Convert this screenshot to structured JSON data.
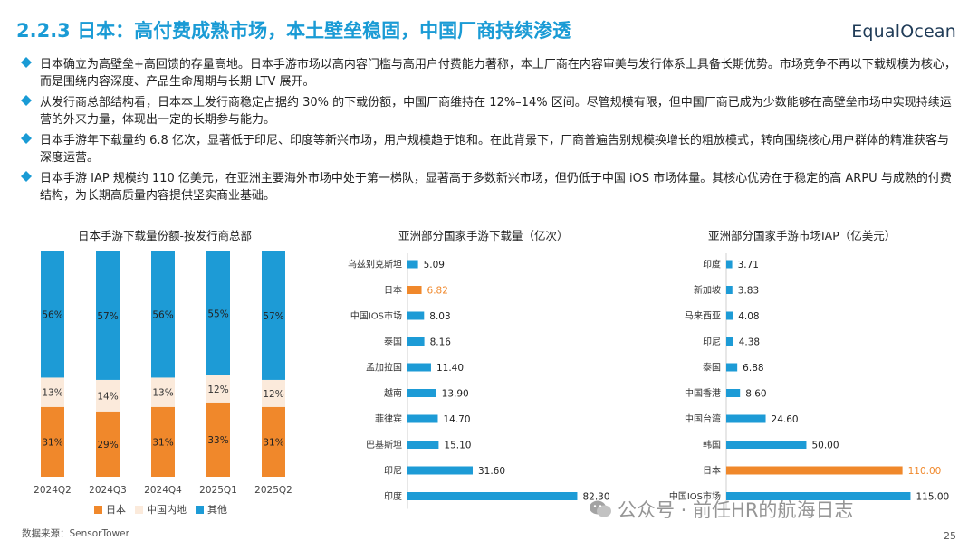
{
  "header": {
    "title": "2.2.3 日本：高付费成熟市场，本土壁垒稳固，中国厂商持续渗透",
    "brand": "EqualOcean"
  },
  "bullets": [
    "日本确立为高壁垒+高回馈的存量高地。日本手游市场以高内容门槛与高用户付费能力著称，本土厂商在内容审美与发行体系上具备长期优势。市场竞争不再以下载规模为核心，而是围绕内容深度、产品生命周期与长期 LTV 展开。",
    "从发行商总部结构看，日本本土发行商稳定占据约 30% 的下载份额，中国厂商维持在 12%–14% 区间。尽管规模有限，但中国厂商已成为少数能够在高壁垒市场中实现持续运营的外来力量，体现出一定的长期参与能力。",
    "日本手游年下载量约 6.8 亿次，显著低于印尼、印度等新兴市场，用户规模趋于饱和。在此背景下，厂商普遍告别规模换增长的粗放模式，转向围绕核心用户群体的精准获客与深度运营。",
    "日本手游 IAP 规模约 110 亿美元，在亚洲主要海外市场中处于第一梯队，显著高于多数新兴市场，但仍低于中国 iOS 市场体量。其核心优势在于稳定的高 ARPU 与成熟的付费结构，为长期高质量内容提供坚实商业基础。"
  ],
  "chart_data": [
    {
      "type": "bar",
      "stacked": true,
      "title": "日本手游下载量份额-按发行商总部",
      "categories": [
        "2024Q2",
        "2024Q3",
        "2024Q4",
        "2025Q1",
        "2025Q2"
      ],
      "series": [
        {
          "name": "日本",
          "values": [
            31,
            29,
            31,
            33,
            31
          ],
          "labels": [
            "31%",
            "29%",
            "31%",
            "33%",
            "31%"
          ],
          "color": "#f0882b"
        },
        {
          "name": "中国内地",
          "values": [
            13,
            14,
            13,
            12,
            12
          ],
          "labels": [
            "13%",
            "14%",
            "13%",
            "12%",
            "12%"
          ],
          "color": "#fbeadb"
        },
        {
          "name": "其他",
          "values": [
            56,
            57,
            56,
            55,
            57
          ],
          "labels": [
            "56%",
            "57%",
            "56%",
            "55%",
            "57%"
          ],
          "color": "#1d9bd6"
        }
      ],
      "ylim": [
        0,
        100
      ]
    },
    {
      "type": "bar",
      "orientation": "horizontal",
      "title": "亚洲部分国家手游下载量（亿次）",
      "categories": [
        "乌兹别克斯坦",
        "日本",
        "中国IOS市场",
        "泰国",
        "孟加拉国",
        "越南",
        "菲律宾",
        "巴基斯坦",
        "印尼",
        "印度"
      ],
      "values": [
        5.09,
        6.82,
        8.03,
        8.16,
        11.4,
        13.9,
        14.7,
        15.1,
        31.6,
        82.3
      ],
      "value_labels": [
        "5.09",
        "6.82",
        "8.03",
        "8.16",
        "11.40",
        "13.90",
        "14.70",
        "15.10",
        "31.60",
        "82.30"
      ],
      "highlight": "日本",
      "xlim": [
        0,
        90
      ]
    },
    {
      "type": "bar",
      "orientation": "horizontal",
      "title": "亚洲部分国家手游市场IAP（亿美元）",
      "categories": [
        "印度",
        "新加坡",
        "马来西亚",
        "印尼",
        "泰国",
        "中国香港",
        "中国台湾",
        "韩国",
        "日本",
        "中国IOS市场"
      ],
      "values": [
        3.71,
        3.83,
        4.08,
        4.38,
        6.88,
        8.6,
        24.6,
        50.0,
        110.0,
        115.0
      ],
      "value_labels": [
        "3.71",
        "3.83",
        "4.08",
        "4.38",
        "6.88",
        "8.60",
        "24.60",
        "50.00",
        "110.00",
        "115.00"
      ],
      "highlight": "日本",
      "xlim": [
        0,
        130
      ]
    }
  ],
  "colors": {
    "primary": "#1d9bd6",
    "highlight": "#f0882b",
    "china": "#fbeadb",
    "title": "#1a9bd5"
  },
  "source": "数据来源：SensorTower",
  "watermark": "公众号 · 前任HR的航海日志",
  "page_number": "25"
}
